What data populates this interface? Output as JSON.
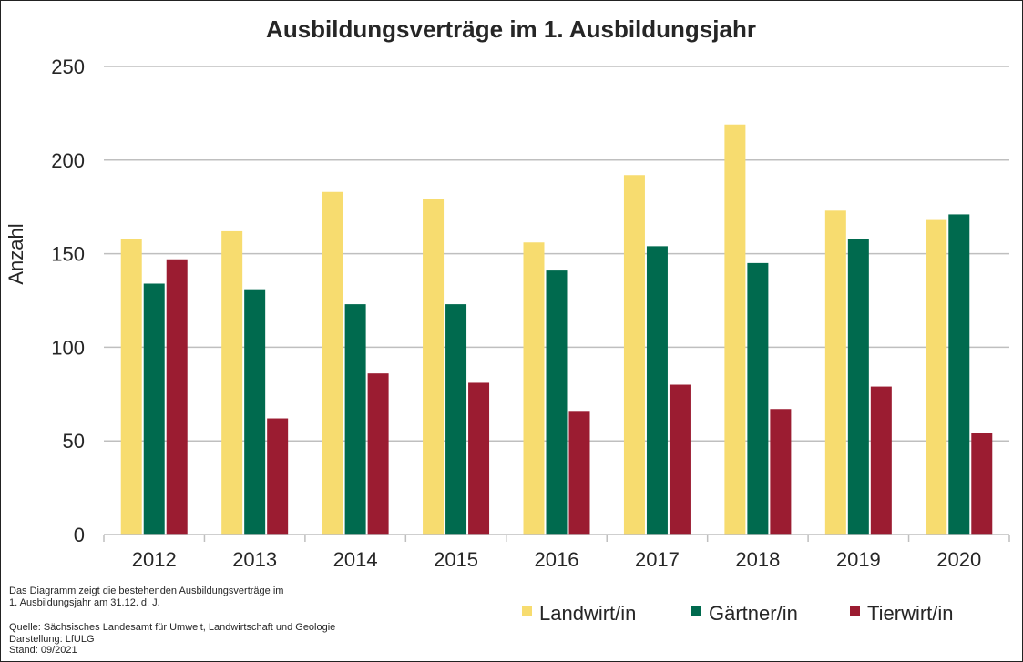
{
  "chart_data": {
    "type": "bar",
    "title": "Ausbildungsverträge  im 1. Ausbildungsjahr",
    "ylabel": "Anzahl",
    "xlabel": "",
    "ylim": [
      0,
      250
    ],
    "yticks": [
      0,
      50,
      100,
      150,
      200,
      250
    ],
    "grid": true,
    "legend_position": "bottom-right",
    "categories": [
      "2012",
      "2013",
      "2014",
      "2015",
      "2016",
      "2017",
      "2018",
      "2019",
      "2020"
    ],
    "series": [
      {
        "name": "Landwirt/in",
        "color": "#F7DC6F",
        "values": [
          158,
          162,
          183,
          179,
          156,
          192,
          219,
          173,
          168
        ]
      },
      {
        "name": "Gärtner/in",
        "color": "#006A4E",
        "values": [
          134,
          131,
          123,
          123,
          141,
          154,
          145,
          158,
          171
        ]
      },
      {
        "name": "Tierwirt/in",
        "color": "#9B1C31",
        "values": [
          147,
          62,
          86,
          81,
          66,
          80,
          67,
          79,
          54
        ]
      }
    ]
  },
  "notes": {
    "description": "Das Diagramm zeigt die bestehenden Ausbildungsverträge im\n1. Ausbildungsjahr am 31.12. d. J.",
    "source": "Quelle: Sächsisches Landesamt für Umwelt, Landwirtschaft und Geologie\nDarstellung: LfULG\nStand: 09/2021"
  }
}
